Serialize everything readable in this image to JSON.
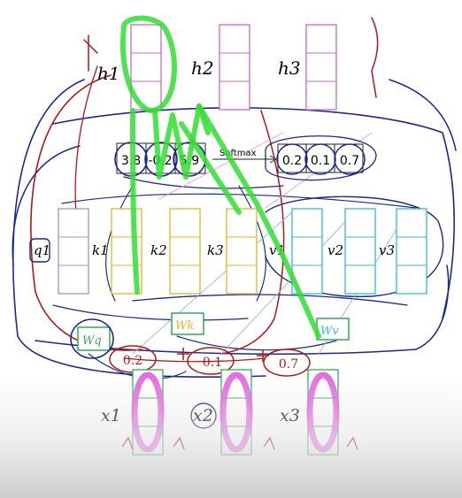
{
  "outputs": [
    "h1",
    "h2",
    "h3"
  ],
  "scores": [
    "3.8",
    "-0.2",
    "5.9"
  ],
  "softmax_label": "Softmax",
  "weights": [
    "0.2",
    "0.1",
    "0.7"
  ],
  "query": "q1",
  "keys": [
    "k1",
    "k2",
    "k3"
  ],
  "values": [
    "v1",
    "v2",
    "v3"
  ],
  "matrices": {
    "query": "Wq",
    "key": "Wk",
    "value": "Wv"
  },
  "inputs": [
    "x1",
    "x2",
    "x3"
  ],
  "annotations": [
    "0.2",
    "0.1",
    "0.7"
  ],
  "colors": {
    "output": "#cc66cc",
    "query": "#a98fd6",
    "key": "#e6b325",
    "value": "#33bbd6",
    "input": "#33aa55",
    "ink_blue": "#1a2a8a",
    "ink_red": "#b01818",
    "highlight_green": "#33dd33",
    "highlight_magenta": "#dd55dd"
  }
}
